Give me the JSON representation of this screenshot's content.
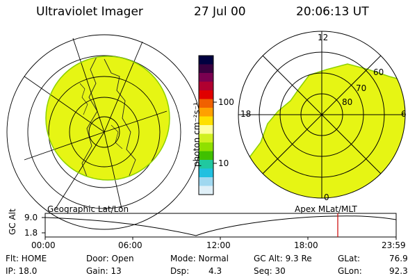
{
  "header": {
    "title": "Ultraviolet Imager",
    "date": "27 Jul 00",
    "time": "20:06:13 UT"
  },
  "left_panel": {
    "caption": "Geographic Lat/Lon",
    "fill_color": "#e6f514"
  },
  "colorbar": {
    "unit_label": "photon cm⁻²s⁻¹",
    "ticks": [
      "100",
      "10"
    ],
    "scale": "log",
    "colors": [
      "#000040",
      "#3a0040",
      "#7a0050",
      "#b00030",
      "#e00000",
      "#f06000",
      "#ffa000",
      "#ffe000",
      "#ffffa0",
      "#d0f020",
      "#90e000",
      "#40c000",
      "#20c8a0",
      "#20c0e0",
      "#a0d8f0",
      "#e0f0f8"
    ]
  },
  "right_panel": {
    "caption": "Apex MLat/MLT",
    "mlt_labels": {
      "top": "12",
      "left": "18",
      "right": "6",
      "bottom": "0"
    },
    "lat_labels": [
      "60",
      "70",
      "80"
    ]
  },
  "altitude_plot": {
    "ylabel": "GC Alt",
    "yticks": [
      "9.0",
      "1.8"
    ],
    "xticks": [
      "00:00",
      "06:00",
      "12:00",
      "18:00",
      "23:59"
    ],
    "marker_color": "#cc0000"
  },
  "status": {
    "row1": {
      "flt": "Flt: HOME",
      "door": "Door: Open",
      "mode": "Mode: Normal",
      "gcalt": "GC Alt: 9.3 Re",
      "glat_label": "GLat:",
      "glat_value": "76.9"
    },
    "row2": {
      "ip": "IP: 18.0",
      "gain": "Gain: 13",
      "dsp_label": "Dsp:",
      "dsp_value": "4.3",
      "seq": "Seq: 30",
      "glon_label": "GLon:",
      "glon_value": "92.3"
    }
  }
}
